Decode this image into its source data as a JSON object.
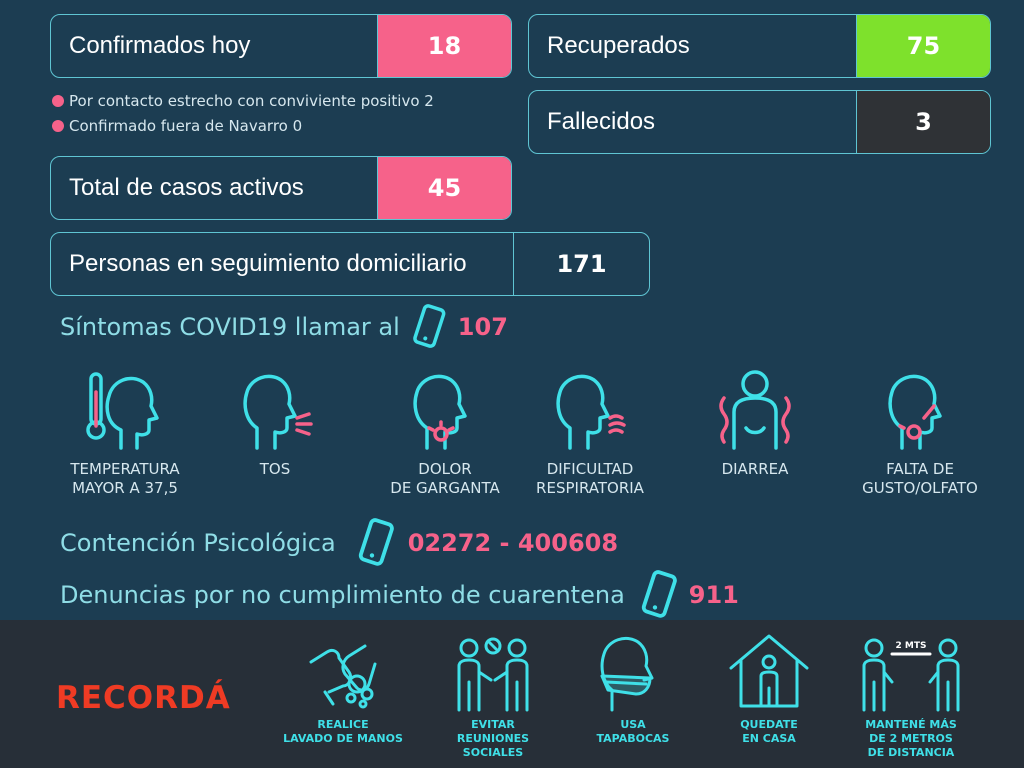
{
  "stats": {
    "confirmados": {
      "label": "Confirmados hoy",
      "value": "18"
    },
    "recuperados": {
      "label": "Recuperados",
      "value": "75"
    },
    "fallecidos": {
      "label": "Fallecidos",
      "value": "3"
    },
    "activos": {
      "label": "Total de casos activos",
      "value": "45"
    },
    "seguimiento": {
      "label": "Personas en seguimiento domiciliario",
      "value": "171"
    }
  },
  "notes": [
    "Por contacto estrecho con conviviente positivo 2",
    "Confirmado fuera de Navarro 0"
  ],
  "sintomas": {
    "label": "Síntomas COVID19 llamar al",
    "number": "107"
  },
  "symptoms": [
    {
      "line1": "TEMPERATURA",
      "line2": "MAYOR A 37,5"
    },
    {
      "line1": "TOS",
      "line2": ""
    },
    {
      "line1": "DOLOR",
      "line2": "DE GARGANTA"
    },
    {
      "line1": "DIFICULTAD",
      "line2": "RESPIRATORIA"
    },
    {
      "line1": "DIARREA",
      "line2": ""
    },
    {
      "line1": "FALTA DE",
      "line2": "GUSTO/OLFATO"
    }
  ],
  "contencion": {
    "label": "Contención Psicológica",
    "number": "02272 - 400608"
  },
  "denuncias": {
    "label": "Denuncias por no cumplimiento de cuarentena",
    "number": "911"
  },
  "footer": {
    "title": "RECORDÁ",
    "items": [
      {
        "line1": "REALICE",
        "line2": "LAVADO DE MANOS",
        "line3": ""
      },
      {
        "line1": "EVITAR",
        "line2": "REUNIONES",
        "line3": "SOCIALES"
      },
      {
        "line1": "USA",
        "line2": "TAPABOCAS",
        "line3": ""
      },
      {
        "line1": "QUEDATE",
        "line2": "EN CASA",
        "line3": ""
      },
      {
        "line1": "MANTENÉ MÁS",
        "line2": "DE 2 METROS",
        "line3": "DE DISTANCIA"
      }
    ],
    "distance_tag": "2 MTS"
  },
  "colors": {
    "pink": "#f6628a",
    "green": "#7ee12c",
    "dark": "#2f3236",
    "teal": "#3fe0e8",
    "bg": "#1c3d52"
  }
}
